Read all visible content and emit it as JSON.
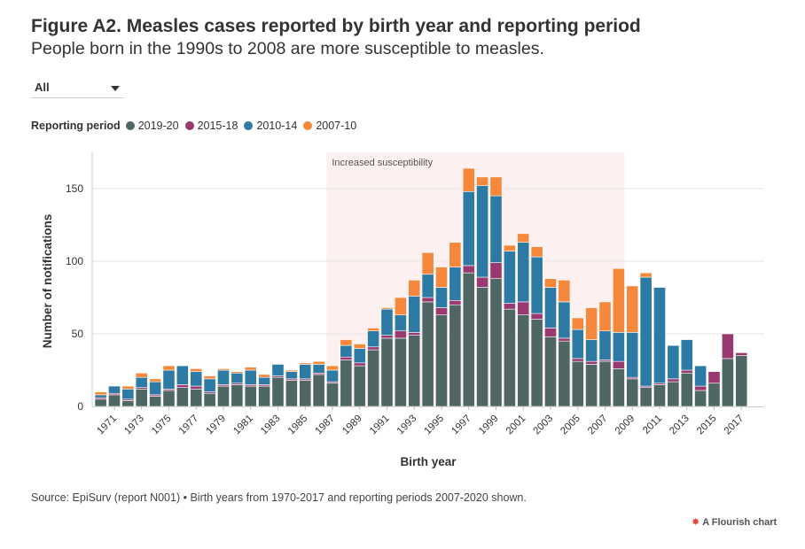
{
  "header": {
    "title": "Figure A2. Measles cases reported by birth year and reporting period",
    "subtitle": "People born in the 1990s to 2008 are more susceptible to measles."
  },
  "filter": {
    "selected": "All"
  },
  "legend": {
    "title": "Reporting period",
    "items": [
      {
        "label": "2019-20",
        "color": "#4e6664"
      },
      {
        "label": "2015-18",
        "color": "#99396f"
      },
      {
        "label": "2010-14",
        "color": "#2d7aa5"
      },
      {
        "label": "2007-10",
        "color": "#f5883a"
      }
    ]
  },
  "footer": {
    "source": "Source: EpiSurv (report N001) • Birth years from 1970-2017 and reporting periods 2007-2020 shown.",
    "credit": "A Flourish chart"
  },
  "chart_data": {
    "type": "bar",
    "stacked": true,
    "xlabel": "Birth year",
    "ylabel": "Number of notifications",
    "ylim": [
      0,
      175
    ],
    "yticks": [
      0,
      50,
      100,
      150
    ],
    "grid": true,
    "highlight": {
      "label": "Increased susceptibility",
      "from": 1987,
      "to": 2008
    },
    "categories": [
      1970,
      1971,
      1972,
      1973,
      1974,
      1975,
      1976,
      1977,
      1978,
      1979,
      1980,
      1981,
      1982,
      1983,
      1984,
      1985,
      1986,
      1987,
      1988,
      1989,
      1990,
      1991,
      1992,
      1993,
      1994,
      1995,
      1996,
      1997,
      1998,
      1999,
      2000,
      2001,
      2002,
      2003,
      2004,
      2005,
      2006,
      2007,
      2008,
      2009,
      2010,
      2011,
      2012,
      2013,
      2014,
      2015,
      2016,
      2017
    ],
    "tick_labels": [
      "1971",
      "1973",
      "1975",
      "1977",
      "1979",
      "1981",
      "1983",
      "1985",
      "1987",
      "1989",
      "1991",
      "1993",
      "1995",
      "1997",
      "1999",
      "2001",
      "2003",
      "2005",
      "2007",
      "2009",
      "2011",
      "2013",
      "2015",
      "2017"
    ],
    "series": [
      {
        "name": "2019-20",
        "color": "#4e6664",
        "values": [
          5,
          8,
          4,
          12,
          7,
          11,
          13,
          12,
          9,
          14,
          15,
          14,
          14,
          20,
          18,
          18,
          22,
          16,
          32,
          28,
          39,
          47,
          47,
          49,
          72,
          63,
          70,
          92,
          82,
          88,
          67,
          63,
          60,
          48,
          45,
          31,
          29,
          31,
          26,
          19,
          13,
          15,
          17,
          23,
          11,
          16,
          33,
          35
        ]
      },
      {
        "name": "2015-18",
        "color": "#99396f",
        "values": [
          1,
          1,
          1,
          1,
          1,
          1,
          2,
          2,
          1,
          1,
          1,
          1,
          1,
          1,
          1,
          1,
          1,
          1,
          2,
          2,
          2,
          2,
          5,
          2,
          3,
          5,
          3,
          5,
          7,
          11,
          4,
          9,
          4,
          6,
          2,
          2,
          2,
          1,
          5,
          1,
          1,
          1,
          2,
          2,
          3,
          8,
          17,
          2
        ]
      },
      {
        "name": "2010-14",
        "color": "#2d7aa5",
        "values": [
          2,
          5,
          7,
          7,
          9,
          13,
          13,
          10,
          9,
          10,
          7,
          10,
          5,
          8,
          5,
          10,
          6,
          8,
          8,
          10,
          11,
          18,
          11,
          25,
          16,
          14,
          23,
          51,
          63,
          46,
          36,
          41,
          39,
          28,
          25,
          20,
          15,
          20,
          20,
          31,
          75,
          66,
          23,
          21,
          14,
          0,
          0,
          0
        ]
      },
      {
        "name": "2007-10",
        "color": "#f5883a",
        "values": [
          2,
          0,
          2,
          3,
          2,
          3,
          0,
          2,
          2,
          1,
          1,
          2,
          2,
          0,
          1,
          1,
          2,
          3,
          4,
          3,
          2,
          1,
          12,
          11,
          15,
          14,
          17,
          16,
          6,
          13,
          4,
          6,
          7,
          6,
          15,
          8,
          22,
          20,
          44,
          32,
          3,
          0,
          0,
          0,
          0,
          0,
          0,
          0
        ]
      }
    ]
  }
}
